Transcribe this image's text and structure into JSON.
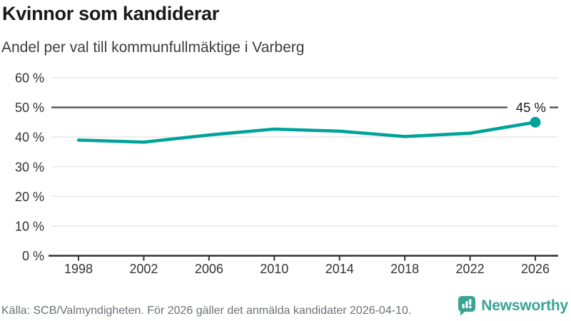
{
  "header": {
    "title": "Kvinnor som kandiderar",
    "subtitle": "Andel per val till kommunfullmäktige i Varberg"
  },
  "footer": {
    "source": "Källa: SCB/Valmyndigheten. För 2026 gäller det anmälda kandidater 2026-04-10.",
    "brand": "Newsworthy",
    "logo_icon": "newsworthy-speech-bubble-bar-chart-icon"
  },
  "colors": {
    "line": "#00a39a",
    "end_dot": "#00a39a",
    "gridline": "#e4e4e4",
    "highlight_gridline": "#54575a",
    "axis": "#333333",
    "axis_text": "#333333",
    "annotation_text": "#17191b",
    "brand_teal": "#3ba391"
  },
  "chart_data": {
    "type": "line",
    "title": "Kvinnor som kandiderar",
    "subtitle": "Andel per val till kommunfullmäktige i Varberg",
    "x": [
      1998,
      2002,
      2006,
      2010,
      2014,
      2018,
      2022,
      2026
    ],
    "values": [
      39,
      38.3,
      40.7,
      42.7,
      42,
      40.2,
      41.3,
      45
    ],
    "unit": "%",
    "ylim": [
      0,
      60
    ],
    "yticks": {
      "values": [
        0,
        10,
        20,
        30,
        40,
        50,
        60
      ],
      "labels": [
        "0 %",
        "10 %",
        "20 %",
        "30 %",
        "40 %",
        "50 %",
        "60 %"
      ]
    },
    "highlight_gridline": 50,
    "end_label": "45 %",
    "end_dot": true,
    "grid": "horizontal-only",
    "legend": "none"
  }
}
